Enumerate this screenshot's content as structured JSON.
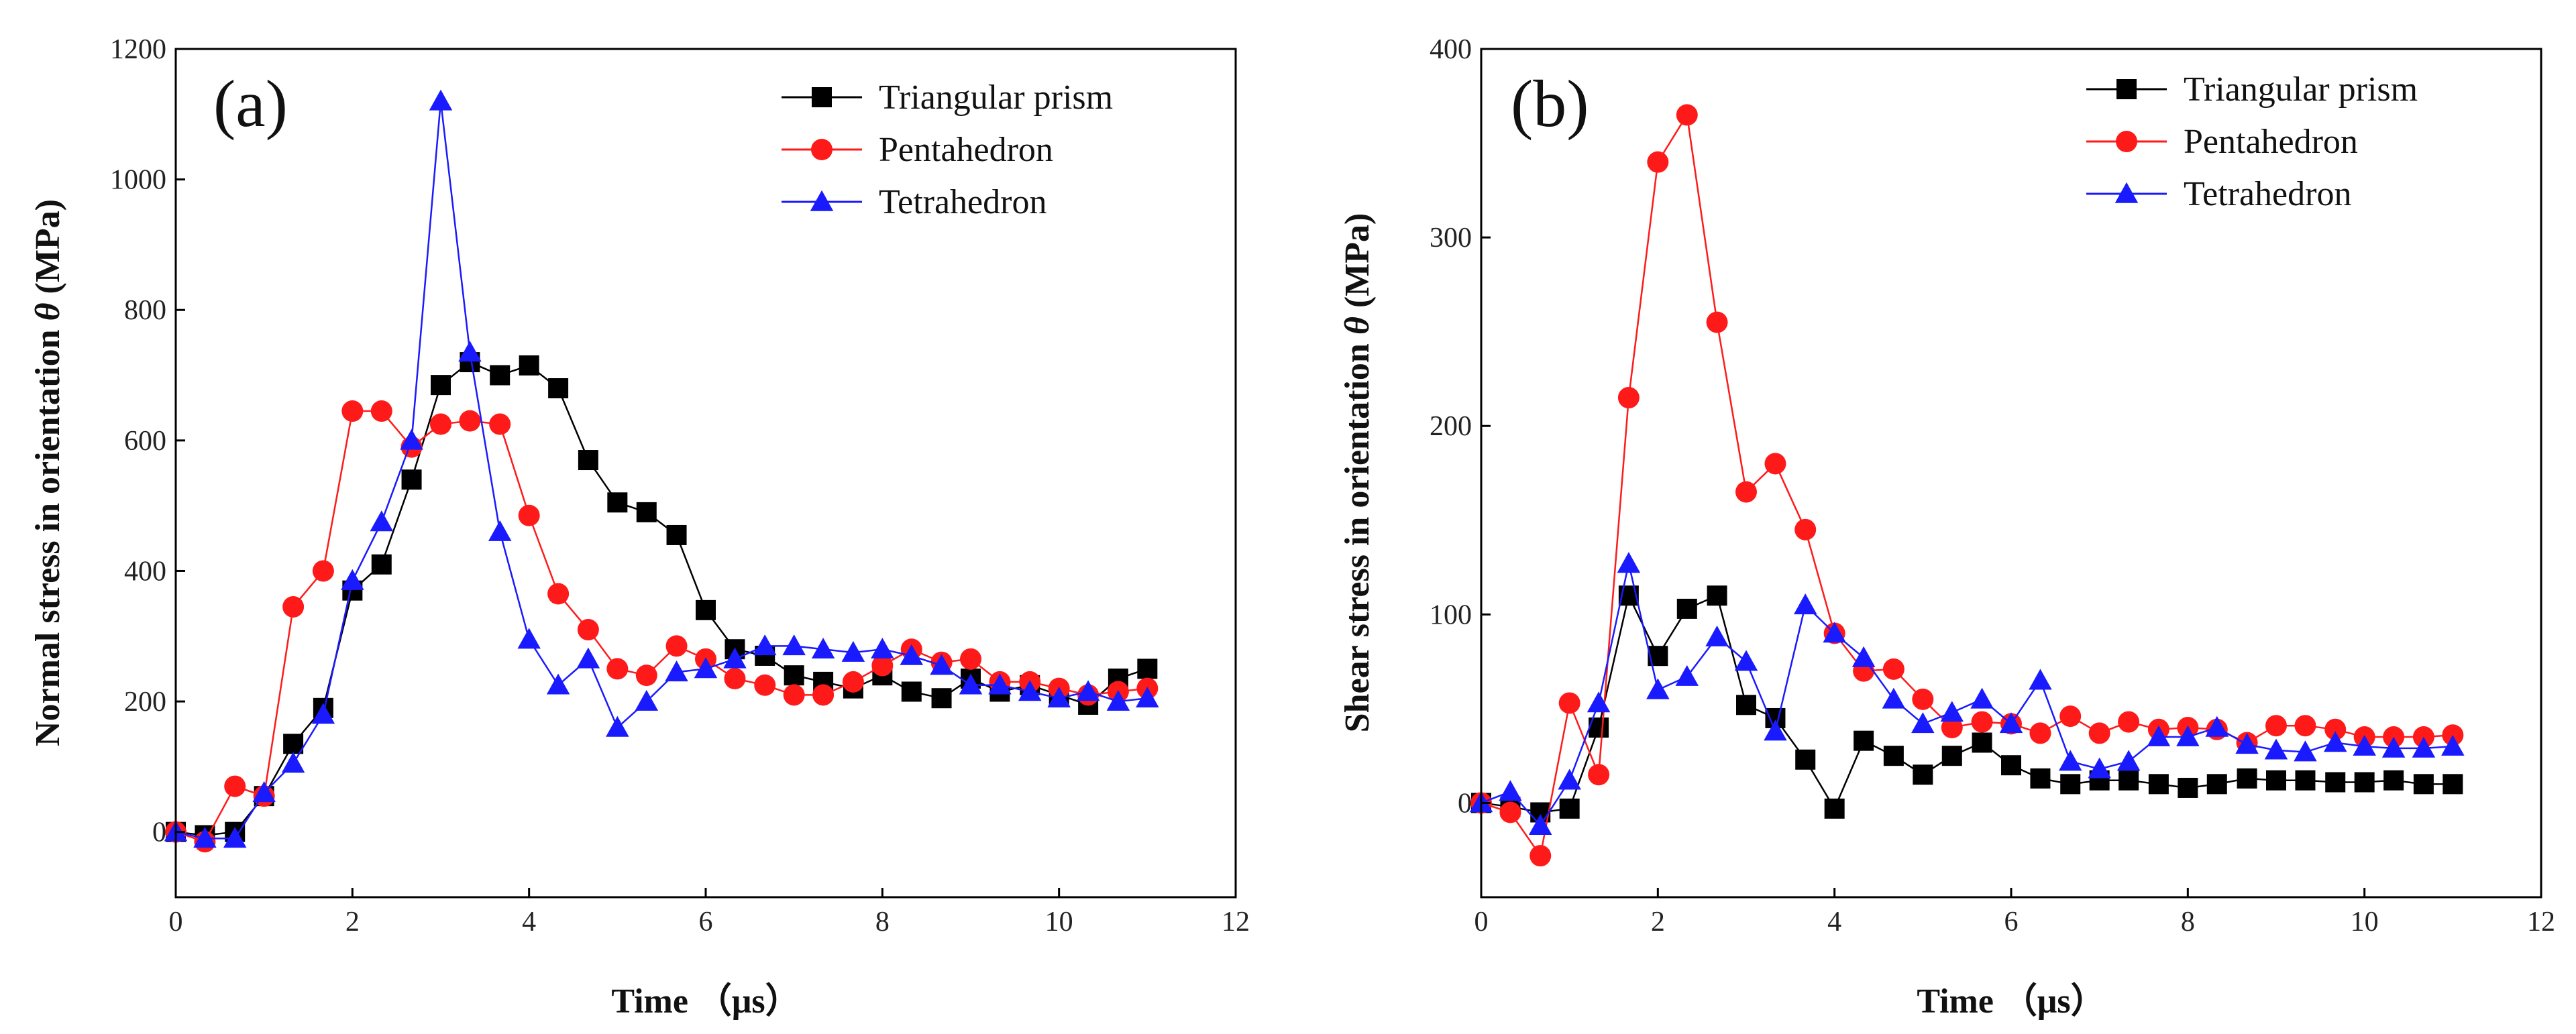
{
  "figure": "stress-comparison",
  "chart_data": [
    {
      "type": "line",
      "panel_label": "(a)",
      "xlabel": "Time （μs）",
      "ylabel_prefix": "Normal stress in orientation ",
      "ylabel_symbol": "θ",
      "ylabel_suffix": " (MPa)",
      "xlim": [
        0,
        12
      ],
      "ylim": [
        -100,
        1200
      ],
      "xticks": [
        0,
        2,
        4,
        6,
        8,
        10,
        12
      ],
      "yticks": [
        0,
        200,
        400,
        600,
        800,
        1000,
        1200
      ],
      "legend": {
        "position": "top-right"
      },
      "series": [
        {
          "name": "Triangular prism",
          "color": "#000000",
          "marker": "square",
          "x": [
            0,
            0.33,
            0.67,
            1.0,
            1.33,
            1.67,
            2.0,
            2.33,
            2.67,
            3.0,
            3.33,
            3.67,
            4.0,
            4.33,
            4.67,
            5.0,
            5.33,
            5.67,
            6.0,
            6.33,
            6.67,
            7.0,
            7.33,
            7.67,
            8.0,
            8.33,
            8.67,
            9.0,
            9.33,
            9.67,
            10.0,
            10.33,
            10.67,
            11.0
          ],
          "y": [
            0,
            -5,
            0,
            55,
            135,
            190,
            370,
            410,
            540,
            685,
            720,
            700,
            715,
            680,
            570,
            505,
            490,
            455,
            340,
            280,
            270,
            240,
            230,
            220,
            240,
            215,
            205,
            235,
            215,
            225,
            210,
            195,
            235,
            250
          ]
        },
        {
          "name": "Pentahedron",
          "color": "#ff1a1a",
          "marker": "circle",
          "x": [
            0,
            0.33,
            0.67,
            1.0,
            1.33,
            1.67,
            2.0,
            2.33,
            2.67,
            3.0,
            3.33,
            3.67,
            4.0,
            4.33,
            4.67,
            5.0,
            5.33,
            5.67,
            6.0,
            6.33,
            6.67,
            7.0,
            7.33,
            7.67,
            8.0,
            8.33,
            8.67,
            9.0,
            9.33,
            9.67,
            10.0,
            10.33,
            10.67,
            11.0
          ],
          "y": [
            0,
            -15,
            70,
            55,
            345,
            400,
            645,
            645,
            590,
            625,
            630,
            625,
            485,
            365,
            310,
            250,
            240,
            285,
            265,
            235,
            225,
            210,
            210,
            230,
            255,
            280,
            260,
            265,
            230,
            230,
            220,
            210,
            215,
            220
          ]
        },
        {
          "name": "Tetrahedron",
          "color": "#1a1aff",
          "marker": "triangle",
          "x": [
            0,
            0.33,
            0.67,
            1.0,
            1.33,
            1.67,
            2.0,
            2.33,
            2.67,
            3.0,
            3.33,
            3.67,
            4.0,
            4.33,
            4.67,
            5.0,
            5.33,
            5.67,
            6.0,
            6.33,
            6.67,
            7.0,
            7.33,
            7.67,
            8.0,
            8.33,
            8.67,
            9.0,
            9.33,
            9.67,
            10.0,
            10.33,
            10.67,
            11.0
          ],
          "y": [
            0,
            -10,
            -10,
            60,
            105,
            180,
            385,
            475,
            600,
            1120,
            735,
            460,
            295,
            225,
            265,
            160,
            200,
            245,
            250,
            265,
            285,
            285,
            280,
            275,
            280,
            270,
            255,
            225,
            225,
            215,
            205,
            215,
            200,
            205
          ]
        }
      ]
    },
    {
      "type": "line",
      "panel_label": "(b)",
      "xlabel": "Time （μs）",
      "ylabel_prefix": "Shear stress in orientation ",
      "ylabel_symbol": "θ",
      "ylabel_suffix": " (MPa)",
      "xlim": [
        0,
        12
      ],
      "ylim": [
        -50,
        400
      ],
      "xticks": [
        0,
        2,
        4,
        6,
        8,
        10,
        12
      ],
      "yticks": [
        0,
        100,
        200,
        300,
        400
      ],
      "legend": {
        "position": "top-right"
      },
      "series": [
        {
          "name": "Triangular prism",
          "color": "#000000",
          "marker": "square",
          "x": [
            0,
            0.33,
            0.67,
            1.0,
            1.33,
            1.67,
            2.0,
            2.33,
            2.67,
            3.0,
            3.33,
            3.67,
            4.0,
            4.33,
            4.67,
            5.0,
            5.33,
            5.67,
            6.0,
            6.33,
            6.67,
            7.0,
            7.33,
            7.67,
            8.0,
            8.33,
            8.67,
            9.0,
            9.33,
            9.67,
            10.0,
            10.33,
            10.67,
            11.0
          ],
          "y": [
            0,
            -2,
            -5,
            -3,
            40,
            110,
            78,
            103,
            110,
            52,
            45,
            23,
            -3,
            33,
            25,
            15,
            25,
            32,
            20,
            13,
            10,
            12,
            12,
            10,
            8,
            10,
            13,
            12,
            12,
            11,
            11,
            12,
            10,
            10
          ]
        },
        {
          "name": "Pentahedron",
          "color": "#ff1a1a",
          "marker": "circle",
          "x": [
            0,
            0.33,
            0.67,
            1.0,
            1.33,
            1.67,
            2.0,
            2.33,
            2.67,
            3.0,
            3.33,
            3.67,
            4.0,
            4.33,
            4.67,
            5.0,
            5.33,
            5.67,
            6.0,
            6.33,
            6.67,
            7.0,
            7.33,
            7.67,
            8.0,
            8.33,
            8.67,
            9.0,
            9.33,
            9.67,
            10.0,
            10.33,
            10.67,
            11.0
          ],
          "y": [
            0,
            -5,
            -28,
            53,
            15,
            215,
            340,
            365,
            255,
            165,
            180,
            145,
            90,
            70,
            71,
            55,
            40,
            43,
            42,
            37,
            46,
            37,
            43,
            39,
            40,
            39,
            32,
            41,
            41,
            39,
            35,
            35,
            35,
            36
          ]
        },
        {
          "name": "Tetrahedron",
          "color": "#1a1aff",
          "marker": "triangle",
          "x": [
            0,
            0.33,
            0.67,
            1.0,
            1.33,
            1.67,
            2.0,
            2.33,
            2.67,
            3.0,
            3.33,
            3.67,
            4.0,
            4.33,
            4.67,
            5.0,
            5.33,
            5.67,
            6.0,
            6.33,
            6.67,
            7.0,
            7.33,
            7.67,
            8.0,
            8.33,
            8.67,
            9.0,
            9.33,
            9.67,
            10.0,
            10.33,
            10.67,
            11.0
          ],
          "y": [
            0,
            6,
            -12,
            12,
            53,
            127,
            60,
            67,
            88,
            75,
            38,
            105,
            90,
            77,
            55,
            42,
            48,
            55,
            42,
            65,
            22,
            18,
            22,
            35,
            35,
            40,
            31,
            28,
            27,
            32,
            30,
            29,
            29,
            30
          ]
        }
      ]
    }
  ]
}
